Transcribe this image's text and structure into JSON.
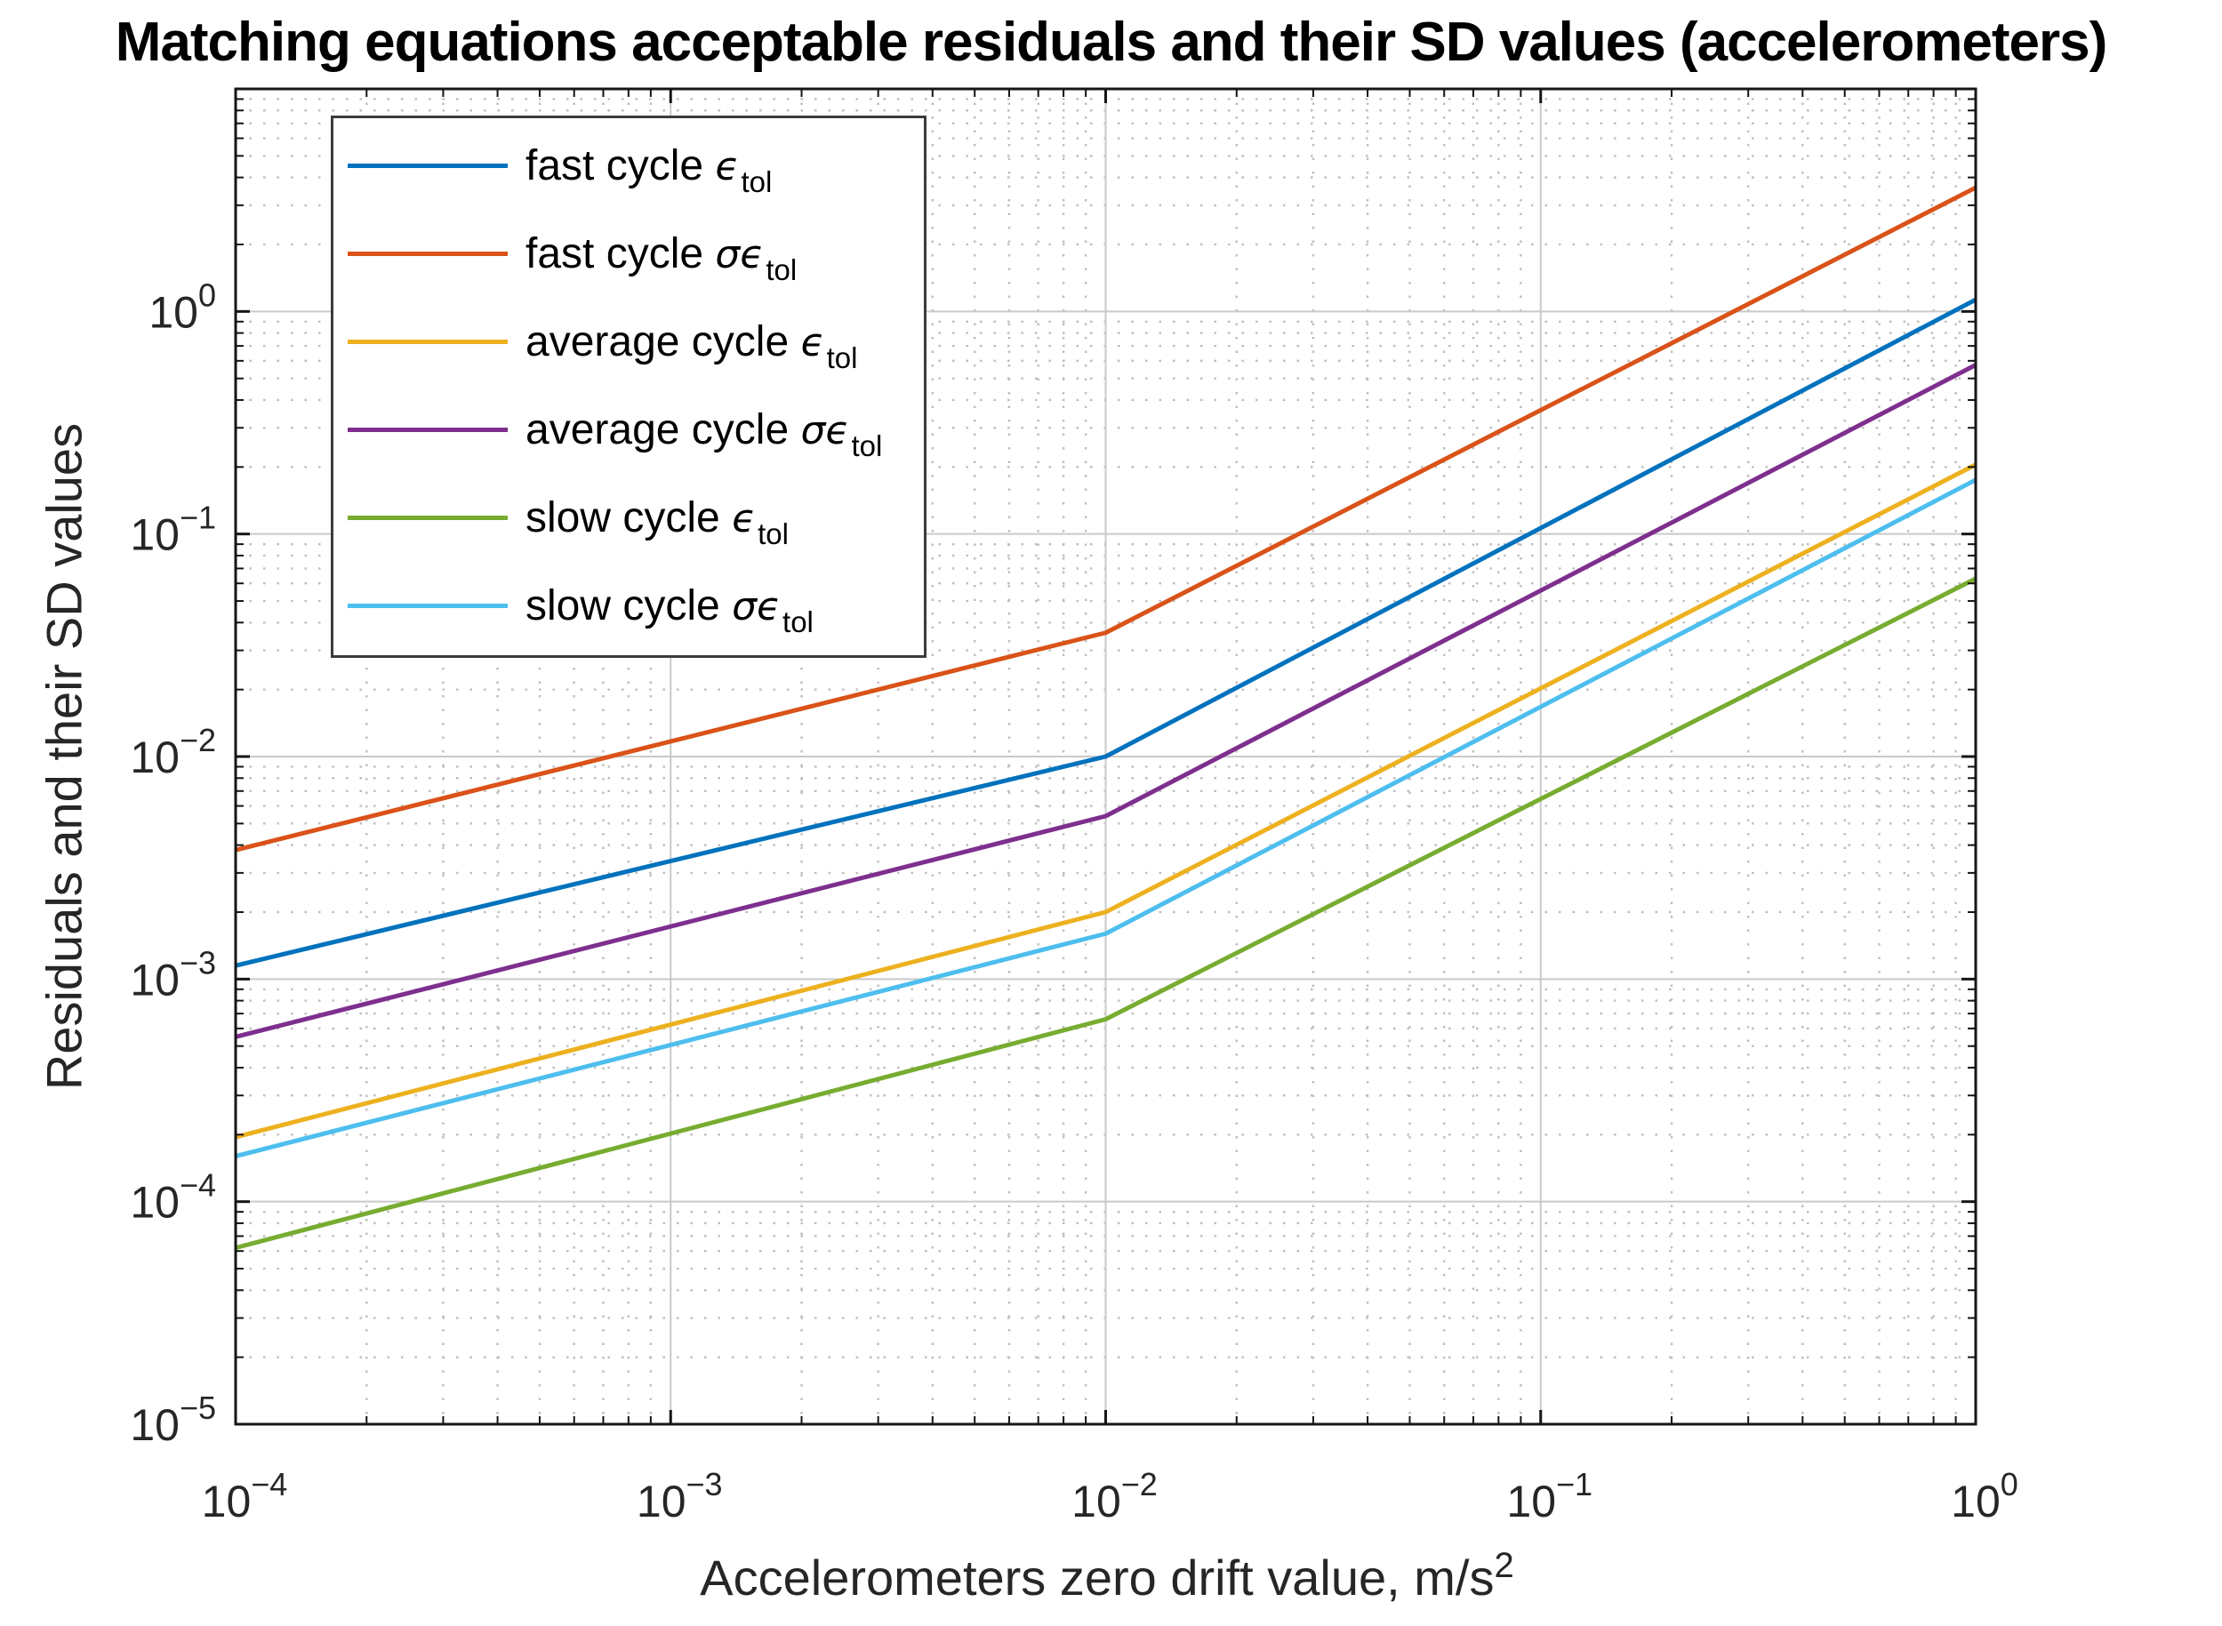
{
  "chart": {
    "title": "Matching equations acceptable residuals and their SD values (accelerometers)",
    "ylabel": "Residuals and their SD values",
    "xlabel_main": "Accelerometers zero drift value, m/s",
    "xlabel_sup": "2"
  },
  "chart_data": {
    "type": "line",
    "title": "Matching equations acceptable residuals and their SD values (accelerometers)",
    "xlabel": "Accelerometers zero drift value, m/s^2",
    "ylabel": "Residuals and their SD values",
    "xscale": "log",
    "yscale": "log",
    "xlim": [
      0.0001,
      1
    ],
    "ylim": [
      1e-05,
      10
    ],
    "grid": true,
    "minor_grid": true,
    "legend_position": "upper-left-inside",
    "x_tick_exponents": [
      -4,
      -3,
      -2,
      -1,
      0
    ],
    "y_tick_exponents": [
      0,
      -1,
      -2,
      -3,
      -4,
      -5
    ],
    "x": [
      0.0001,
      0.01,
      1
    ],
    "series": [
      {
        "name": "fast cycle eps_tol",
        "label_prefix": "fast cycle ",
        "symbol": "ϵ",
        "subscript": "tol",
        "color": "#0072BD",
        "values": [
          0.00115,
          0.01,
          1.13
        ]
      },
      {
        "name": "fast cycle sigma_eps_tol",
        "label_prefix": "fast cycle ",
        "symbol": "σϵ",
        "subscript": "tol",
        "color": "#D95319",
        "values": [
          0.0038,
          0.036,
          3.6
        ]
      },
      {
        "name": "average cycle eps_tol",
        "label_prefix": "average cycle ",
        "symbol": "ϵ",
        "subscript": "tol",
        "color": "#EDB120",
        "values": [
          0.000195,
          0.002,
          0.205
        ]
      },
      {
        "name": "average cycle sigma_eps_tol",
        "label_prefix": "average cycle ",
        "symbol": "σϵ",
        "subscript": "tol",
        "color": "#7E2F8E",
        "values": [
          0.00055,
          0.0054,
          0.575
        ]
      },
      {
        "name": "slow cycle eps_tol",
        "label_prefix": "slow cycle ",
        "symbol": "ϵ",
        "subscript": "tol",
        "color": "#77AC30",
        "values": [
          6.2e-05,
          0.00066,
          0.063
        ]
      },
      {
        "name": "slow cycle sigma_eps_tol",
        "label_prefix": "slow cycle ",
        "symbol": "σϵ",
        "subscript": "tol",
        "color": "#4DBEEE",
        "values": [
          0.00016,
          0.0016,
          0.175
        ]
      }
    ],
    "axis_color": "#151515",
    "major_grid_color": "#c9c9c9",
    "minor_grid_color": "#9a9a9a",
    "tick_label_color": "#262626"
  }
}
